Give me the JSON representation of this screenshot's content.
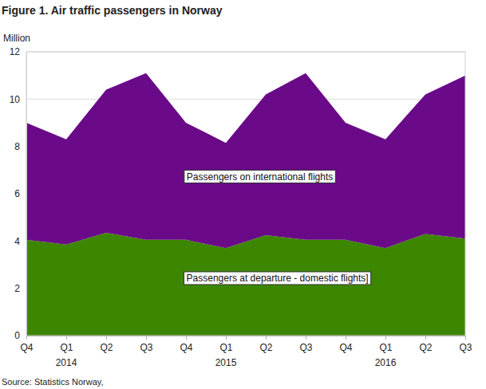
{
  "chart_data": {
    "type": "area",
    "title": "Figure 1. Air traffic passengers in Norway",
    "y_label": "Million",
    "source": "Source: Statistics Norway,",
    "stacked": true,
    "categories": [
      "Q4",
      "Q1",
      "Q2",
      "Q3",
      "Q4",
      "Q1",
      "Q2",
      "Q3",
      "Q4",
      "Q1",
      "Q2",
      "Q3"
    ],
    "years": [
      null,
      "2014",
      null,
      null,
      null,
      "2015",
      null,
      null,
      null,
      "2016",
      null,
      null
    ],
    "series": [
      {
        "name": "Passengers at departure - domestic flights]",
        "color": "#3d8600",
        "values": [
          4.05,
          3.85,
          4.35,
          4.05,
          4.05,
          3.7,
          4.25,
          4.05,
          4.05,
          3.7,
          4.3,
          4.1
        ]
      },
      {
        "name": "Passengers on international flights",
        "color": "#6a0a88",
        "values": [
          4.95,
          4.45,
          6.05,
          7.05,
          4.95,
          4.45,
          5.95,
          7.05,
          4.95,
          4.6,
          5.9,
          6.9
        ]
      }
    ],
    "ylim": [
      0,
      12
    ],
    "yticks": [
      0,
      2,
      4,
      6,
      8,
      10,
      12
    ],
    "grid": true
  }
}
